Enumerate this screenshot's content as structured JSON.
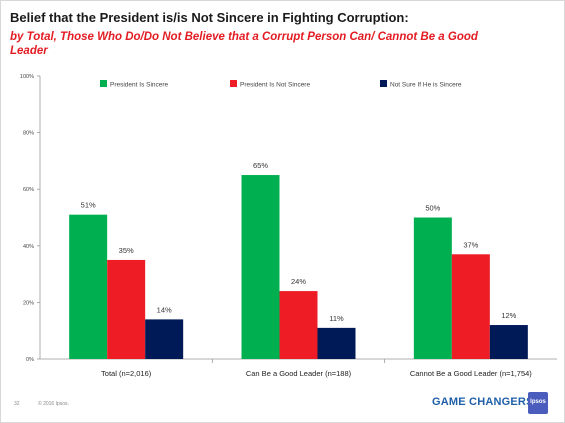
{
  "title": "Belief that the President is/is Not Sincere in Fighting Corruption:",
  "subtitle": "by Total, Those Who Do/Do Not Believe that a Corrupt Person Can/ Cannot Be a Good Leader",
  "footer": {
    "page_number": "32",
    "copyright": "© 2016 Ipsos.",
    "brand_text": "GAME CHANGERS",
    "logo_text": "Ipsos"
  },
  "colors": {
    "sincere": "#00b050",
    "not_sincere": "#ee1c25",
    "not_sure": "#001a57"
  },
  "chart_data": {
    "type": "bar",
    "categories": [
      "Total (n=2,016)",
      "Can Be a Good Leader (n=188)",
      "Cannot Be a Good Leader (n=1,754)"
    ],
    "series": [
      {
        "name": "President Is Sincere",
        "values": [
          51,
          65,
          50
        ],
        "labels": [
          "51%",
          "65%",
          "50%"
        ]
      },
      {
        "name": "President Is Not Sincere",
        "values": [
          35,
          24,
          37
        ],
        "labels": [
          "35%",
          "24%",
          "37%"
        ]
      },
      {
        "name": "Not Sure If He is Sincere",
        "values": [
          14,
          11,
          12
        ],
        "labels": [
          "14%",
          "11%",
          "12%"
        ]
      }
    ],
    "yticks": [
      "0%",
      "20%",
      "40%",
      "60%",
      "80%",
      "100%"
    ],
    "ylim": [
      0,
      100
    ],
    "legend_position": "top",
    "grid": false
  }
}
